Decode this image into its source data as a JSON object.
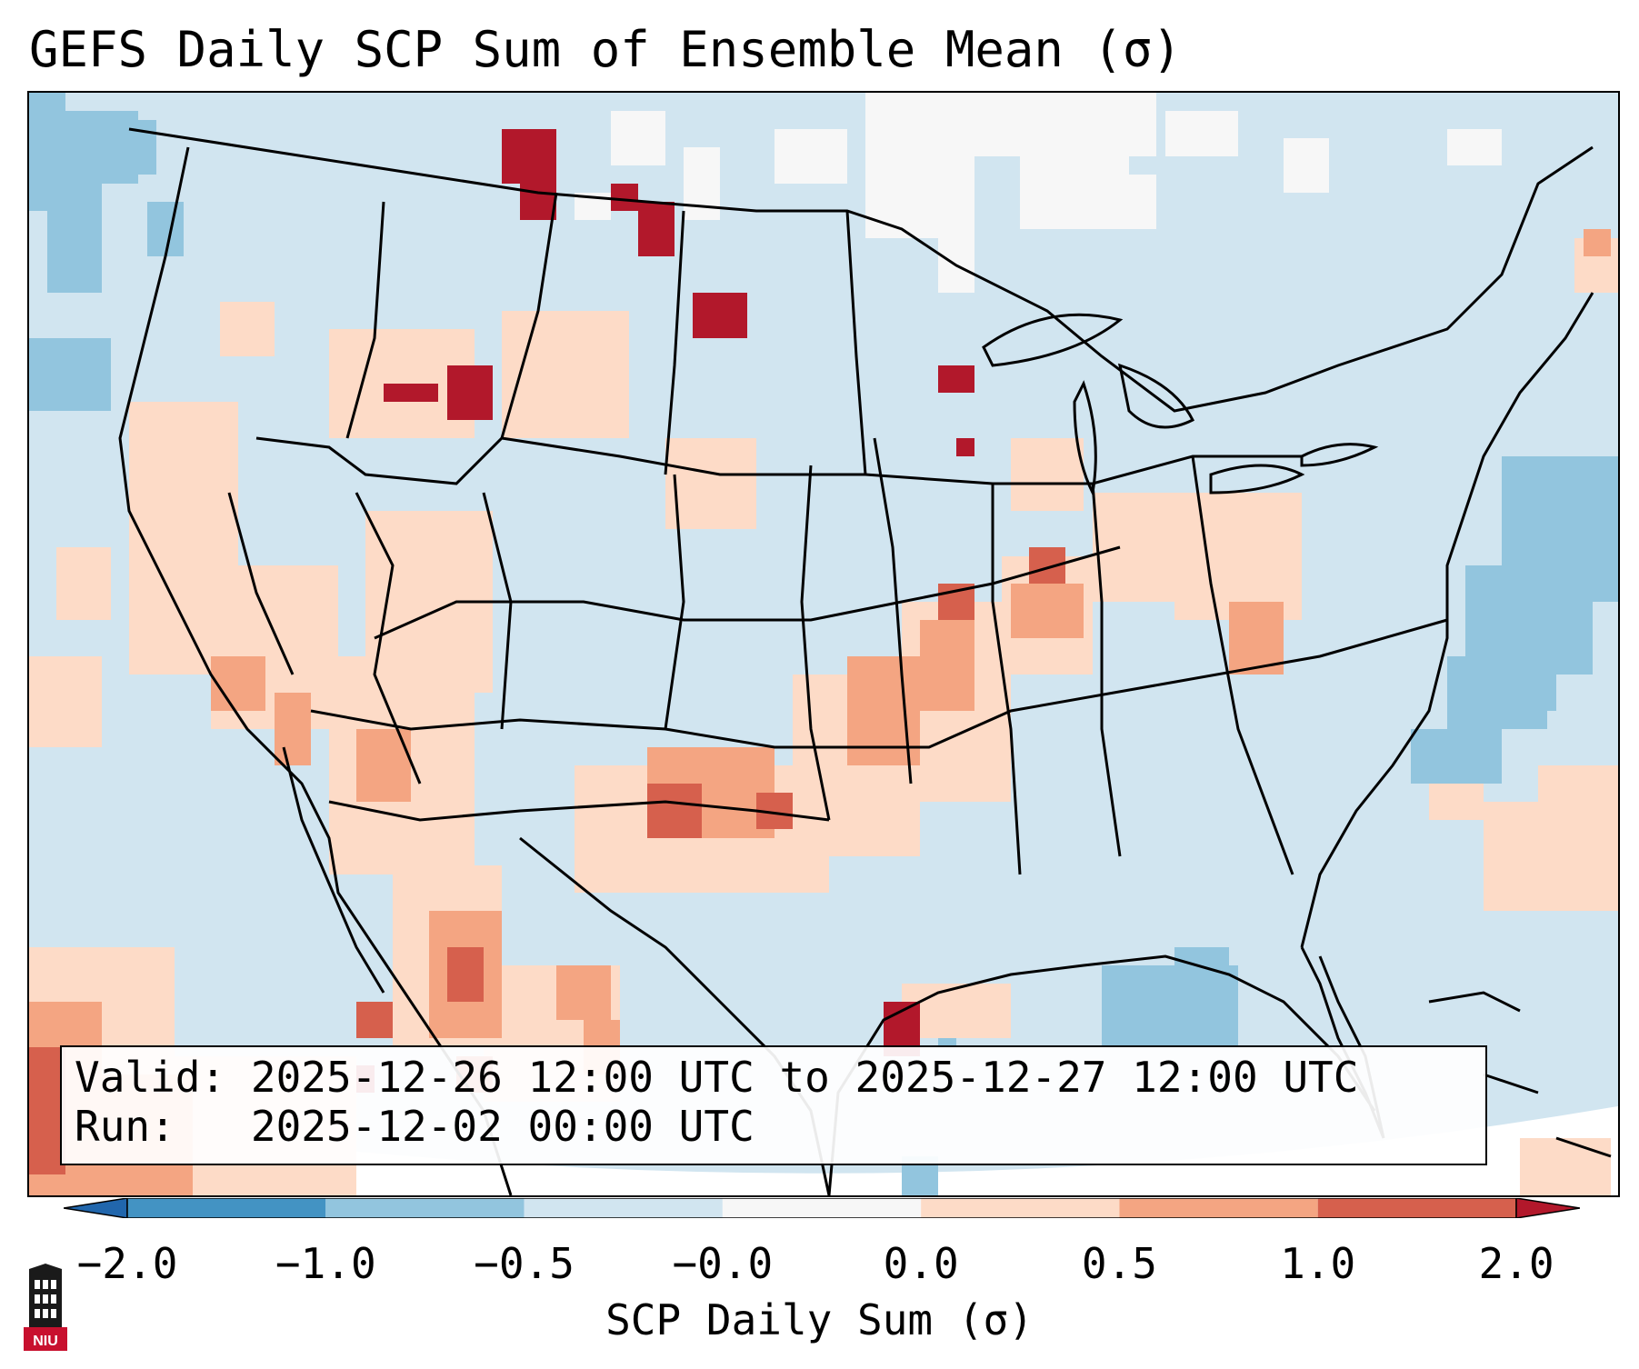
{
  "title": "GEFS Daily SCP Sum of Ensemble Mean (σ)",
  "info": {
    "valid_label": "Valid:",
    "valid_value": "2025-12-26 12:00 UTC to 2025-12-27 12:00 UTC",
    "run_label": "Run:",
    "run_value": "2025-12-02 00:00 UTC"
  },
  "colorbar": {
    "label": "SCP Daily Sum (σ)",
    "ticks": [
      "−2.0",
      "−1.0",
      "−0.5",
      "−0.0",
      "0.0",
      "0.5",
      "1.0",
      "2.0"
    ],
    "colors": {
      "under": "#2166ac",
      "b1": "#4393c3",
      "b2": "#92c5de",
      "b3": "#d1e5f0",
      "b4": "#f7f7f7",
      "b5": "#fddbc7",
      "b6": "#f4a582",
      "b7": "#d6604d",
      "over": "#b2182b"
    }
  },
  "logo": {
    "text": "NIU",
    "icon": "niu-tower-logo-icon"
  },
  "map": {
    "background": "#d1e5f0",
    "border_color": "#000000"
  }
}
